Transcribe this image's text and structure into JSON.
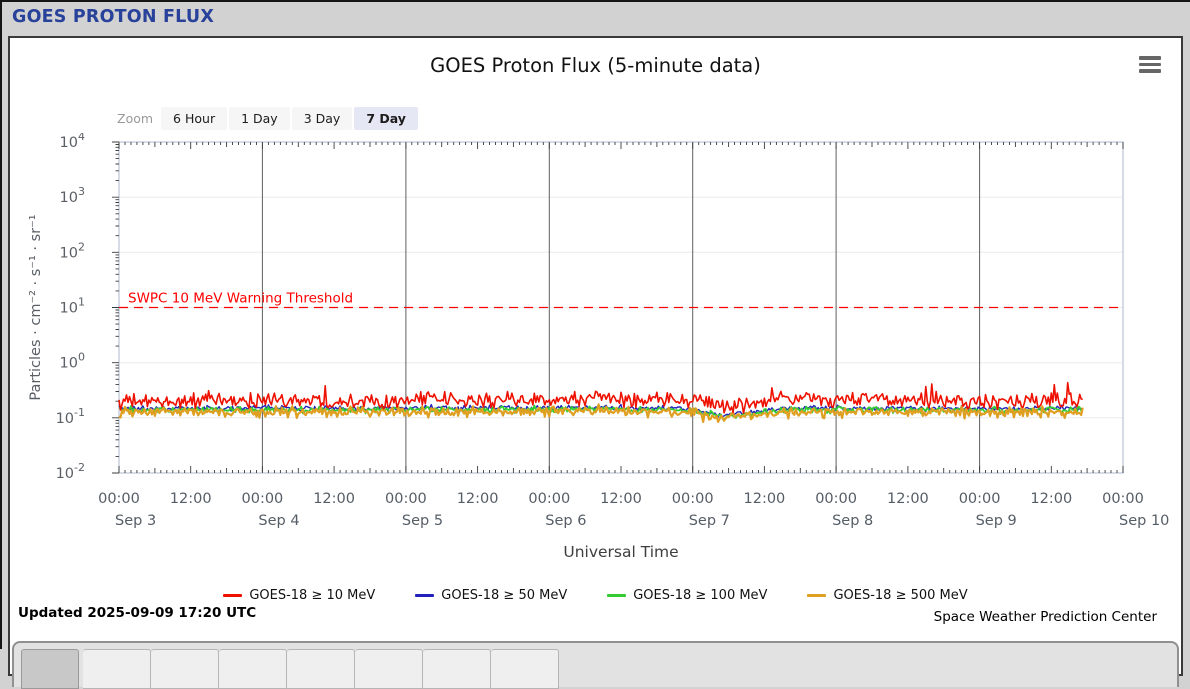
{
  "page": {
    "header_title": "GOES PROTON FLUX"
  },
  "panel": {
    "title": "GOES Proton Flux (5-minute data)",
    "menu_icon": "hamburger-menu",
    "zoom_label": "Zoom",
    "zoom_buttons": [
      "6 Hour",
      "1 Day",
      "3 Day",
      "7 Day"
    ],
    "zoom_selected": "7 Day",
    "updated": "Updated 2025-09-09 17:20 UTC",
    "credit": "Space Weather Prediction Center"
  },
  "chart_data": {
    "type": "line",
    "title": "GOES Proton Flux (5-minute data)",
    "xlabel": "Universal Time",
    "ylabel": "Particles · cm⁻² · s⁻¹ · sr⁻¹",
    "y_scale": "log",
    "ylim": [
      0.01,
      10000
    ],
    "y_ticks_exponents": [
      4,
      3,
      2,
      1,
      0,
      -1,
      -2
    ],
    "x_days": 7,
    "x_start": "Sep 3 00:00",
    "x_end": "Sep 10 00:00",
    "data_end_day": 6.722,
    "x_ticks": [
      {
        "time": "00:00",
        "date": "Sep 3"
      },
      {
        "time": "12:00"
      },
      {
        "time": "00:00",
        "date": "Sep 4"
      },
      {
        "time": "12:00"
      },
      {
        "time": "00:00",
        "date": "Sep 5"
      },
      {
        "time": "12:00"
      },
      {
        "time": "00:00",
        "date": "Sep 6"
      },
      {
        "time": "12:00"
      },
      {
        "time": "00:00",
        "date": "Sep 7"
      },
      {
        "time": "12:00"
      },
      {
        "time": "00:00",
        "date": "Sep 8"
      },
      {
        "time": "12:00"
      },
      {
        "time": "00:00",
        "date": "Sep 9"
      },
      {
        "time": "12:00"
      },
      {
        "time": "00:00",
        "date": "Sep 10"
      }
    ],
    "threshold": {
      "label": "SWPC 10 MeV Warning Threshold",
      "value": 10,
      "color": "#ff0000",
      "style": "dashed"
    },
    "grid": {
      "vertical_day_lines": true,
      "horizontal_decade_lines": true
    },
    "legend_position": "bottom",
    "sample_interval_days": 0.2,
    "series": [
      {
        "name": "GOES-18 ≥ 10 MeV",
        "color": "#ee1100",
        "samples": [
          0.2,
          0.19,
          0.2,
          0.21,
          0.2,
          0.21,
          0.22,
          0.2,
          0.21,
          0.2,
          0.21,
          0.22,
          0.2,
          0.21,
          0.22,
          0.2,
          0.22,
          0.24,
          0.21,
          0.22,
          0.2,
          0.16,
          0.18,
          0.21,
          0.22,
          0.21,
          0.22,
          0.21,
          0.2,
          0.21,
          0.2,
          0.19,
          0.2,
          0.21,
          0.23
        ]
      },
      {
        "name": "GOES-18 ≥ 50 MeV",
        "color": "#2222bb",
        "samples": [
          0.15,
          0.145,
          0.148,
          0.15,
          0.146,
          0.15,
          0.152,
          0.148,
          0.15,
          0.148,
          0.15,
          0.152,
          0.148,
          0.15,
          0.152,
          0.15,
          0.152,
          0.155,
          0.15,
          0.15,
          0.145,
          0.112,
          0.125,
          0.145,
          0.15,
          0.148,
          0.15,
          0.148,
          0.146,
          0.148,
          0.146,
          0.145,
          0.146,
          0.15,
          0.152
        ]
      },
      {
        "name": "GOES-18 ≥ 100 MeV",
        "color": "#33cc33",
        "samples": [
          0.14,
          0.138,
          0.14,
          0.142,
          0.138,
          0.14,
          0.143,
          0.139,
          0.141,
          0.139,
          0.141,
          0.143,
          0.139,
          0.141,
          0.143,
          0.141,
          0.143,
          0.146,
          0.141,
          0.141,
          0.137,
          0.105,
          0.118,
          0.137,
          0.141,
          0.139,
          0.141,
          0.139,
          0.138,
          0.139,
          0.138,
          0.137,
          0.138,
          0.141,
          0.143
        ]
      },
      {
        "name": "GOES-18 ≥ 500 MeV",
        "color": "#dfa022",
        "samples": [
          0.13,
          0.127,
          0.129,
          0.131,
          0.127,
          0.129,
          0.132,
          0.128,
          0.13,
          0.128,
          0.13,
          0.132,
          0.128,
          0.13,
          0.132,
          0.13,
          0.132,
          0.135,
          0.13,
          0.13,
          0.126,
          0.098,
          0.11,
          0.126,
          0.13,
          0.128,
          0.13,
          0.128,
          0.127,
          0.128,
          0.127,
          0.126,
          0.127,
          0.13,
          0.132
        ]
      }
    ]
  }
}
